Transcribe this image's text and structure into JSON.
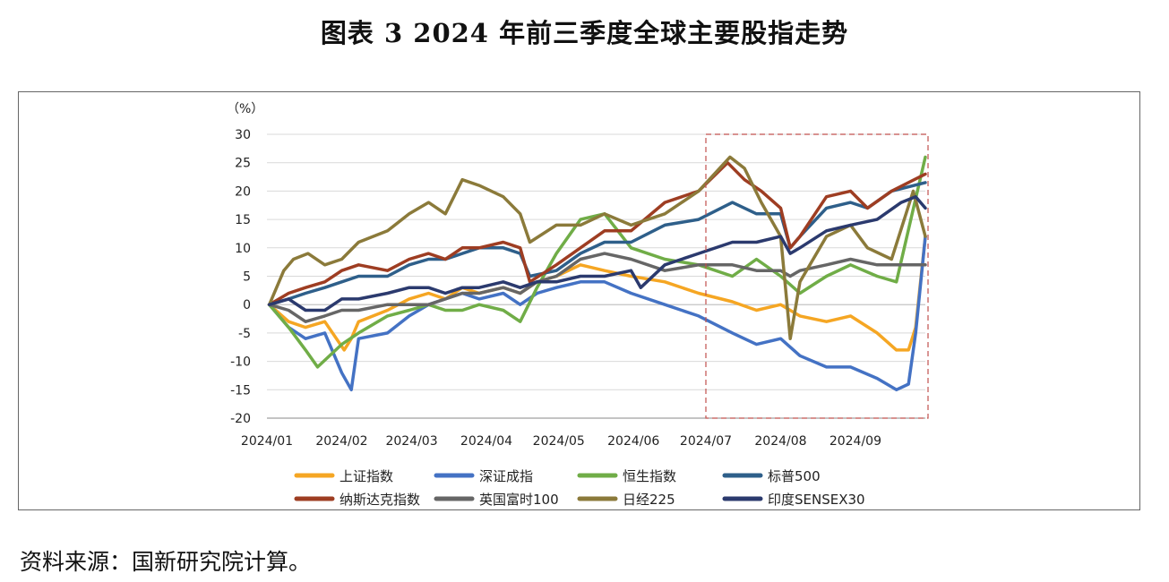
{
  "figure_title": "图表 3  2024 年前三季度全球主要股指走势",
  "source_note": "资料来源：国新研究院计算。",
  "chart_data": {
    "type": "line",
    "y_unit": "（%）",
    "ylim": [
      -20,
      30
    ],
    "yticks": [
      -20,
      -15,
      -10,
      -5,
      0,
      5,
      10,
      15,
      20,
      25,
      30
    ],
    "x_range": [
      "2024-01-01",
      "2024-09-30"
    ],
    "x_tick_labels": [
      "2024/01",
      "2024/02",
      "2024/03",
      "2024/04",
      "2024/05",
      "2024/06",
      "2024/07",
      "2024/08",
      "2024/09"
    ],
    "x_tick_dates": [
      "2024-01-01",
      "2024-02-01",
      "2024-03-01",
      "2024-04-01",
      "2024-05-01",
      "2024-06-01",
      "2024-07-01",
      "2024-08-01",
      "2024-09-01"
    ],
    "grid": "horizontal",
    "highlight_region": {
      "x": [
        "2024-07-01",
        "2024-09-30"
      ],
      "y": [
        -20,
        30
      ],
      "style": "dashed",
      "color": "#c0504d"
    },
    "legend_position": "bottom",
    "series": [
      {
        "name": "上证指数",
        "color": "#f5a623",
        "x": [
          "2024-01-02",
          "2024-01-10",
          "2024-01-17",
          "2024-01-25",
          "2024-02-02",
          "2024-02-05",
          "2024-02-08",
          "2024-02-20",
          "2024-02-29",
          "2024-03-08",
          "2024-03-15",
          "2024-03-22",
          "2024-03-29",
          "2024-04-08",
          "2024-04-15",
          "2024-04-22",
          "2024-04-30",
          "2024-05-10",
          "2024-05-20",
          "2024-05-31",
          "2024-06-14",
          "2024-06-28",
          "2024-07-12",
          "2024-07-22",
          "2024-08-01",
          "2024-08-09",
          "2024-08-20",
          "2024-08-30",
          "2024-09-10",
          "2024-09-18",
          "2024-09-23",
          "2024-09-26",
          "2024-09-30"
        ],
        "values": [
          0,
          -3,
          -4,
          -3,
          -8,
          -6,
          -3,
          -1,
          1,
          2,
          1,
          3,
          2,
          3,
          2,
          4,
          5,
          7,
          6,
          5,
          4,
          2,
          0.5,
          -1,
          0,
          -2,
          -3,
          -2,
          -5,
          -8,
          -8,
          -4,
          12
        ]
      },
      {
        "name": "深证成指",
        "color": "#4472c4",
        "x": [
          "2024-01-02",
          "2024-01-10",
          "2024-01-17",
          "2024-01-25",
          "2024-02-01",
          "2024-02-05",
          "2024-02-08",
          "2024-02-20",
          "2024-02-29",
          "2024-03-08",
          "2024-03-15",
          "2024-03-22",
          "2024-03-29",
          "2024-04-08",
          "2024-04-15",
          "2024-04-22",
          "2024-04-30",
          "2024-05-10",
          "2024-05-20",
          "2024-05-31",
          "2024-06-14",
          "2024-06-28",
          "2024-07-12",
          "2024-07-22",
          "2024-08-01",
          "2024-08-09",
          "2024-08-20",
          "2024-08-30",
          "2024-09-10",
          "2024-09-18",
          "2024-09-23",
          "2024-09-26",
          "2024-09-30"
        ],
        "values": [
          0,
          -4,
          -6,
          -5,
          -12,
          -15,
          -6,
          -5,
          -2,
          0,
          1,
          2,
          1,
          2,
          0,
          2,
          3,
          4,
          4,
          2,
          0,
          -2,
          -5,
          -7,
          -6,
          -9,
          -11,
          -11,
          -13,
          -15,
          -14,
          -5,
          12
        ]
      },
      {
        "name": "恒生指数",
        "color": "#70ad47",
        "x": [
          "2024-01-02",
          "2024-01-10",
          "2024-01-17",
          "2024-01-22",
          "2024-02-01",
          "2024-02-08",
          "2024-02-20",
          "2024-02-29",
          "2024-03-08",
          "2024-03-15",
          "2024-03-22",
          "2024-03-29",
          "2024-04-08",
          "2024-04-15",
          "2024-04-22",
          "2024-04-30",
          "2024-05-10",
          "2024-05-20",
          "2024-05-31",
          "2024-06-14",
          "2024-06-28",
          "2024-07-12",
          "2024-07-22",
          "2024-08-01",
          "2024-08-09",
          "2024-08-20",
          "2024-08-30",
          "2024-09-10",
          "2024-09-18",
          "2024-09-24",
          "2024-09-30"
        ],
        "values": [
          0,
          -4,
          -8,
          -11,
          -7,
          -5,
          -2,
          -1,
          0,
          -1,
          -1,
          0,
          -1,
          -3,
          3,
          9,
          15,
          16,
          10,
          8,
          7,
          5,
          8,
          5,
          2,
          5,
          7,
          5,
          4,
          15,
          26
        ]
      },
      {
        "name": "标普500",
        "color": "#2e5f8a",
        "x": [
          "2024-01-02",
          "2024-01-10",
          "2024-01-17",
          "2024-01-25",
          "2024-02-01",
          "2024-02-08",
          "2024-02-20",
          "2024-02-29",
          "2024-03-08",
          "2024-03-15",
          "2024-03-22",
          "2024-03-29",
          "2024-04-08",
          "2024-04-15",
          "2024-04-19",
          "2024-04-30",
          "2024-05-10",
          "2024-05-20",
          "2024-05-31",
          "2024-06-14",
          "2024-06-28",
          "2024-07-12",
          "2024-07-22",
          "2024-08-01",
          "2024-08-05",
          "2024-08-09",
          "2024-08-20",
          "2024-08-30",
          "2024-09-06",
          "2024-09-16",
          "2024-09-30"
        ],
        "values": [
          0,
          1,
          2,
          3,
          4,
          5,
          5,
          7,
          8,
          8,
          9,
          10,
          10,
          9,
          5,
          6,
          9,
          11,
          11,
          14,
          15,
          18,
          16,
          16,
          10,
          12,
          17,
          18,
          17,
          20,
          21.5
        ]
      },
      {
        "name": "纳斯达克指数",
        "color": "#9e3d22",
        "x": [
          "2024-01-02",
          "2024-01-10",
          "2024-01-17",
          "2024-01-25",
          "2024-02-01",
          "2024-02-08",
          "2024-02-20",
          "2024-02-29",
          "2024-03-08",
          "2024-03-15",
          "2024-03-22",
          "2024-03-29",
          "2024-04-08",
          "2024-04-15",
          "2024-04-19",
          "2024-04-30",
          "2024-05-10",
          "2024-05-20",
          "2024-05-31",
          "2024-06-14",
          "2024-06-28",
          "2024-07-10",
          "2024-07-17",
          "2024-07-24",
          "2024-08-01",
          "2024-08-05",
          "2024-08-09",
          "2024-08-20",
          "2024-08-30",
          "2024-09-06",
          "2024-09-16",
          "2024-09-30"
        ],
        "values": [
          0,
          2,
          3,
          4,
          6,
          7,
          6,
          8,
          9,
          8,
          10,
          10,
          11,
          10,
          4,
          7,
          10,
          13,
          13,
          18,
          20,
          25,
          22,
          20,
          17,
          10,
          12,
          19,
          20,
          17,
          20,
          23
        ]
      },
      {
        "name": "英国富时100",
        "color": "#666666",
        "x": [
          "2024-01-02",
          "2024-01-10",
          "2024-01-17",
          "2024-01-25",
          "2024-02-01",
          "2024-02-08",
          "2024-02-20",
          "2024-02-29",
          "2024-03-08",
          "2024-03-15",
          "2024-03-22",
          "2024-03-29",
          "2024-04-08",
          "2024-04-15",
          "2024-04-22",
          "2024-04-30",
          "2024-05-10",
          "2024-05-20",
          "2024-05-31",
          "2024-06-14",
          "2024-06-28",
          "2024-07-12",
          "2024-07-22",
          "2024-08-01",
          "2024-08-05",
          "2024-08-09",
          "2024-08-20",
          "2024-08-30",
          "2024-09-10",
          "2024-09-18",
          "2024-09-30"
        ],
        "values": [
          0,
          -1,
          -3,
          -2,
          -1,
          -1,
          0,
          0,
          0,
          1,
          2,
          2,
          3,
          2,
          4,
          5,
          8,
          9,
          8,
          6,
          7,
          7,
          6,
          6,
          5,
          6,
          7,
          8,
          7,
          7,
          7
        ]
      },
      {
        "name": "日经225",
        "color": "#8b7a3a",
        "x": [
          "2024-01-02",
          "2024-01-08",
          "2024-01-12",
          "2024-01-18",
          "2024-01-25",
          "2024-02-01",
          "2024-02-08",
          "2024-02-20",
          "2024-02-29",
          "2024-03-08",
          "2024-03-15",
          "2024-03-22",
          "2024-03-29",
          "2024-04-08",
          "2024-04-15",
          "2024-04-19",
          "2024-04-30",
          "2024-05-10",
          "2024-05-20",
          "2024-05-31",
          "2024-06-14",
          "2024-06-28",
          "2024-07-11",
          "2024-07-17",
          "2024-07-24",
          "2024-08-01",
          "2024-08-05",
          "2024-08-09",
          "2024-08-20",
          "2024-08-30",
          "2024-09-06",
          "2024-09-16",
          "2024-09-25",
          "2024-09-30"
        ],
        "values": [
          0,
          6,
          8,
          9,
          7,
          8,
          11,
          13,
          16,
          18,
          16,
          22,
          21,
          19,
          16,
          11,
          14,
          14,
          16,
          14,
          16,
          20,
          26,
          24,
          18,
          12,
          -6,
          4,
          12,
          14,
          10,
          8,
          20,
          12
        ]
      },
      {
        "name": "印度SENSEX30",
        "color": "#2b3a6e",
        "x": [
          "2024-01-02",
          "2024-01-10",
          "2024-01-17",
          "2024-01-25",
          "2024-02-01",
          "2024-02-08",
          "2024-02-20",
          "2024-02-29",
          "2024-03-08",
          "2024-03-15",
          "2024-03-22",
          "2024-03-29",
          "2024-04-08",
          "2024-04-15",
          "2024-04-22",
          "2024-04-30",
          "2024-05-10",
          "2024-05-20",
          "2024-05-31",
          "2024-06-04",
          "2024-06-14",
          "2024-06-28",
          "2024-07-12",
          "2024-07-22",
          "2024-08-01",
          "2024-08-05",
          "2024-08-09",
          "2024-08-20",
          "2024-08-30",
          "2024-09-10",
          "2024-09-20",
          "2024-09-26",
          "2024-09-30"
        ],
        "values": [
          0,
          1,
          -1,
          -1,
          1,
          1,
          2,
          3,
          3,
          2,
          3,
          3,
          4,
          3,
          4,
          4,
          5,
          5,
          6,
          3,
          7,
          9,
          11,
          11,
          12,
          9,
          10,
          13,
          14,
          15,
          18,
          19,
          17
        ]
      }
    ]
  }
}
